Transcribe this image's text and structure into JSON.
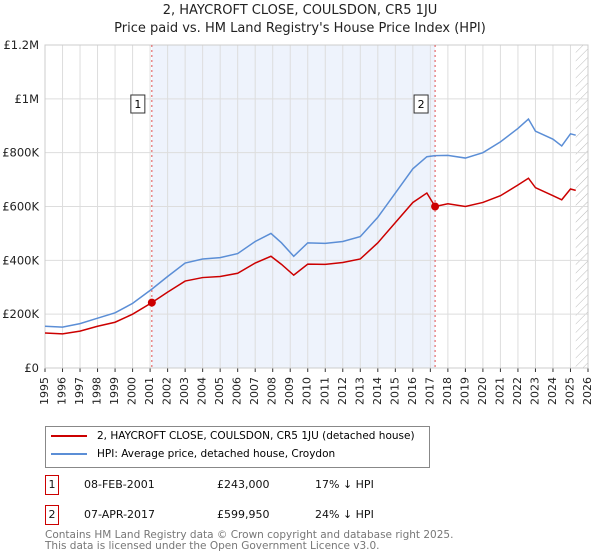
{
  "chart_data": {
    "type": "line",
    "title": "2, HAYCROFT CLOSE, COULSDON, CR5 1JU",
    "subtitle": "Price paid vs. HM Land Registry's House Price Index (HPI)",
    "xlim": [
      1995,
      2026
    ],
    "ylim": [
      0,
      1200000
    ],
    "yticks": [
      {
        "v": 0,
        "label": "£0"
      },
      {
        "v": 200000,
        "label": "£200K"
      },
      {
        "v": 400000,
        "label": "£400K"
      },
      {
        "v": 600000,
        "label": "£600K"
      },
      {
        "v": 800000,
        "label": "£800K"
      },
      {
        "v": 1000000,
        "label": "£1M"
      },
      {
        "v": 1200000,
        "label": "£1.2M"
      }
    ],
    "xticks": [
      "1995",
      "1996",
      "1997",
      "1998",
      "1999",
      "2000",
      "2001",
      "2002",
      "2003",
      "2004",
      "2005",
      "2006",
      "2007",
      "2008",
      "2009",
      "2010",
      "2011",
      "2012",
      "2013",
      "2014",
      "2015",
      "2016",
      "2017",
      "2018",
      "2019",
      "2020",
      "2021",
      "2022",
      "2023",
      "2024",
      "2025",
      "2026"
    ],
    "series": [
      {
        "name": "2, HAYCROFT CLOSE, COULSDON, CR5 1JU (detached house)",
        "color": "#cc0000",
        "x": [
          1995,
          1996,
          1997,
          1998,
          1999,
          2000,
          2001.1,
          2002,
          2003,
          2004,
          2005,
          2006,
          2007,
          2007.9,
          2008.5,
          2009.2,
          2010,
          2011,
          2012,
          2013,
          2014,
          2015,
          2016,
          2016.8,
          2017.27,
          2018,
          2019,
          2020,
          2021,
          2022,
          2022.6,
          2023,
          2024,
          2024.5,
          2025,
          2025.3
        ],
        "y": [
          130000,
          127000,
          137000,
          155000,
          170000,
          200000,
          243000,
          282000,
          323000,
          336000,
          340000,
          352000,
          390000,
          415000,
          385000,
          345000,
          386000,
          385000,
          392000,
          405000,
          465000,
          540000,
          615000,
          650000,
          599950,
          610000,
          600000,
          615000,
          640000,
          680000,
          705000,
          670000,
          640000,
          625000,
          665000,
          660000
        ]
      },
      {
        "name": "HPI: Average price, detached house, Croydon",
        "color": "#5b8ed6",
        "x": [
          1995,
          1996,
          1997,
          1998,
          1999,
          2000,
          2001.1,
          2002,
          2003,
          2004,
          2005,
          2006,
          2007,
          2007.9,
          2008.5,
          2009.2,
          2010,
          2011,
          2012,
          2013,
          2014,
          2015,
          2016,
          2016.8,
          2017.27,
          2018,
          2019,
          2020,
          2021,
          2022,
          2022.6,
          2023,
          2024,
          2024.5,
          2025,
          2025.3
        ],
        "y": [
          155000,
          152000,
          165000,
          185000,
          205000,
          240000,
          293000,
          340000,
          390000,
          405000,
          410000,
          425000,
          470000,
          500000,
          465000,
          415000,
          465000,
          463000,
          470000,
          488000,
          560000,
          650000,
          740000,
          785000,
          789000,
          790000,
          780000,
          800000,
          840000,
          890000,
          925000,
          880000,
          850000,
          825000,
          870000,
          865000
        ]
      }
    ],
    "sales": [
      {
        "label": "1",
        "x": 2001.1,
        "y": 243000,
        "date": "08-FEB-2001",
        "price": "£243,000",
        "hpi": "17% ↓ HPI"
      },
      {
        "label": "2",
        "x": 2017.27,
        "y": 599950,
        "date": "07-APR-2017",
        "price": "£599,950",
        "hpi": "24% ↓ HPI"
      }
    ],
    "forecast_from": 2025.3
  },
  "footer": [
    "Contains HM Land Registry data © Crown copyright and database right 2025.",
    "This data is licensed under the Open Government Licence v3.0."
  ]
}
